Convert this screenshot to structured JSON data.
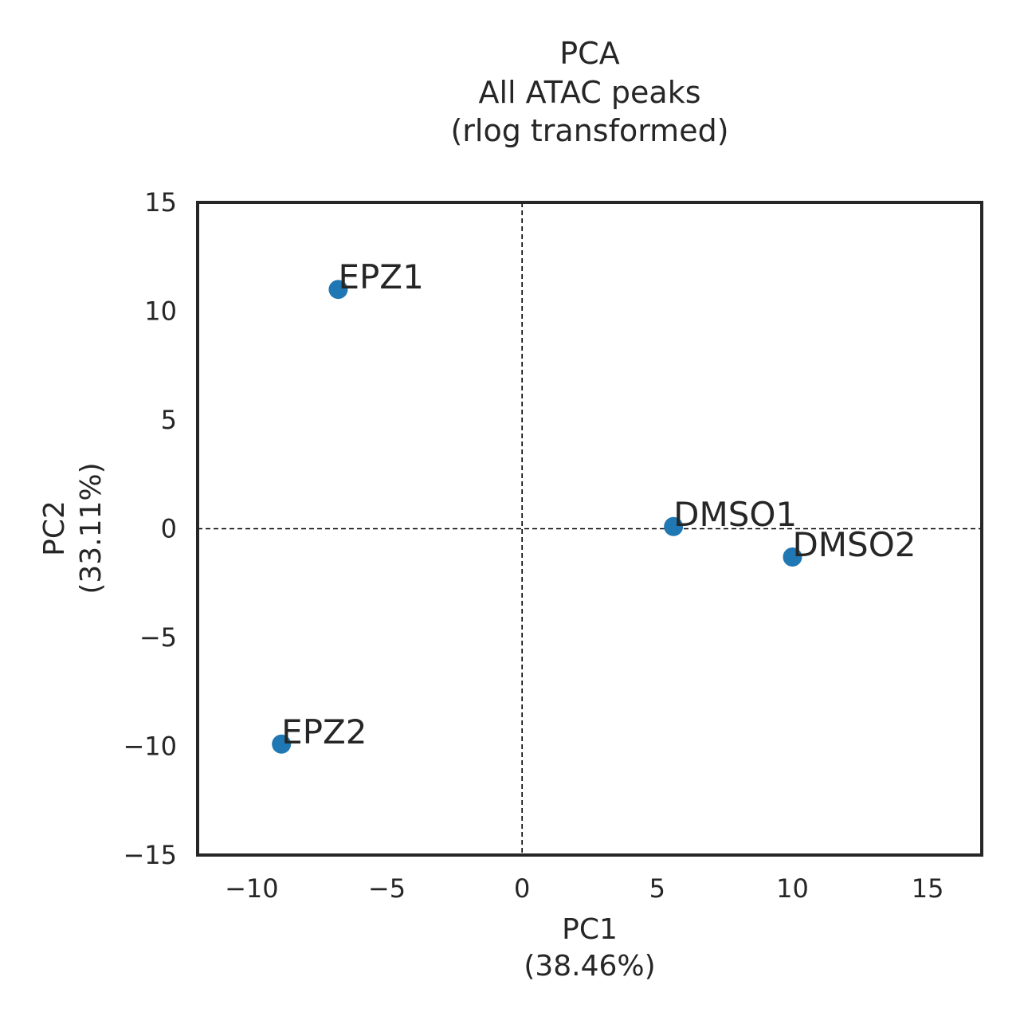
{
  "chart_data": {
    "type": "scatter",
    "title_lines": [
      "PCA",
      "All ATAC peaks",
      "(rlog transformed)"
    ],
    "xlabel_lines": [
      "PC1",
      "(38.46%)"
    ],
    "ylabel_lines": [
      "PC2",
      "(33.11%)"
    ],
    "xlim": [
      -12,
      17
    ],
    "ylim": [
      -15,
      15
    ],
    "xticks": [
      -10,
      -5,
      0,
      5,
      10,
      15
    ],
    "yticks": [
      -15,
      -10,
      -5,
      0,
      5,
      10,
      15
    ],
    "xtick_labels": [
      "−10",
      "−5",
      "0",
      "5",
      "10",
      "15"
    ],
    "ytick_labels": [
      "−15",
      "−10",
      "−5",
      "0",
      "5",
      "10",
      "15"
    ],
    "reference_lines": {
      "x": 0,
      "y": 0,
      "style": "dashed"
    },
    "grid": false,
    "point_color": "#1f77b4",
    "points": [
      {
        "label": "EPZ1",
        "x": -6.8,
        "y": 11.0
      },
      {
        "label": "EPZ2",
        "x": -8.9,
        "y": -9.9
      },
      {
        "label": "DMSO1",
        "x": 5.6,
        "y": 0.1
      },
      {
        "label": "DMSO2",
        "x": 10.0,
        "y": -1.3
      }
    ]
  }
}
